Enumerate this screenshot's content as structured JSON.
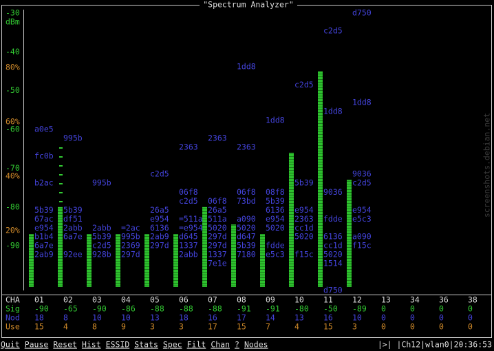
{
  "spectrum": {
    "title": "\"Spectrum Analyzer\"",
    "ylim": [
      -101.5,
      -30
    ],
    "yticks": [
      -30,
      -40,
      -50,
      -60,
      -70,
      -80,
      -90
    ],
    "yunit": "dBm",
    "y2lim": [
      -2,
      100
    ],
    "y2ticks": [
      {
        "value": 80,
        "label": "80%"
      },
      {
        "value": 60,
        "label": "60%"
      },
      {
        "value": 40,
        "label": "40%"
      },
      {
        "value": 20,
        "label": "20%"
      }
    ],
    "row_labels": [
      "CHA",
      "Sig",
      "Nod",
      "Use"
    ],
    "channels": [
      {
        "name": "01",
        "bar": -87,
        "sig": -90,
        "nod": 18,
        "use": 15,
        "networks": [
          {
            "id": "a0e5",
            "dbm": -60
          },
          {
            "id": "fc0b",
            "dbm": -66.9
          },
          {
            "id": "b2ac",
            "dbm": -73.8
          },
          {
            "id": "5b39",
            "dbm": -80.8
          },
          {
            "id": "67ac",
            "dbm": -83.1
          },
          {
            "id": "e954",
            "dbm": -85.4
          },
          {
            "id": "b1b4",
            "dbm": -87.7
          },
          {
            "id": "6a7e",
            "dbm": -90
          },
          {
            "id": "2ab9",
            "dbm": -92.3
          }
        ]
      },
      {
        "name": "02",
        "bar": -80,
        "sig": -65,
        "nod": 8,
        "use": 4,
        "networks": [
          {
            "id": "995b",
            "dbm": -62.3
          },
          {
            "id": "5b39",
            "dbm": -80.8
          },
          {
            "id": "df51",
            "dbm": -83.1
          },
          {
            "id": "2abb",
            "dbm": -85.4
          },
          {
            "id": "6a7e",
            "dbm": -87.7
          },
          {
            "id": "92ee",
            "dbm": -92.3
          }
        ]
      },
      {
        "name": "03",
        "bar": -87,
        "sig": -90,
        "nod": 10,
        "use": 8,
        "networks": [
          {
            "id": "995b",
            "dbm": -73.8
          },
          {
            "id": "2abb",
            "dbm": -85.4
          },
          {
            "id": "5b39",
            "dbm": -87.7
          },
          {
            "id": "c2d5",
            "dbm": -90
          },
          {
            "id": "928b",
            "dbm": -92.3
          }
        ]
      },
      {
        "name": "04",
        "bar": -87,
        "sig": -86,
        "nod": 10,
        "use": 9,
        "networks": [
          {
            "id": "=2ac",
            "dbm": -85.4
          },
          {
            "id": "995b",
            "dbm": -87.7
          },
          {
            "id": "2369",
            "dbm": -90
          },
          {
            "id": "297d",
            "dbm": -92.3
          }
        ]
      },
      {
        "name": "05",
        "bar": -87,
        "sig": -88,
        "nod": 13,
        "use": 3,
        "networks": [
          {
            "id": "c2d5",
            "dbm": -71.5
          },
          {
            "id": "26a5",
            "dbm": -80.8
          },
          {
            "id": "e954",
            "dbm": -83.1
          },
          {
            "id": "6136",
            "dbm": -85.4
          },
          {
            "id": "2ab9",
            "dbm": -87.7
          },
          {
            "id": "297d",
            "dbm": -90
          }
        ]
      },
      {
        "name": "06",
        "bar": -87,
        "sig": -88,
        "nod": 18,
        "use": 3,
        "networks": [
          {
            "id": "2363",
            "dbm": -64.6
          },
          {
            "id": "06f8",
            "dbm": -76.2
          },
          {
            "id": "c2d5",
            "dbm": -78.5
          },
          {
            "id": "=511a",
            "dbm": -83.1
          },
          {
            "id": "=e954",
            "dbm": -85.4
          },
          {
            "id": "d645",
            "dbm": -87.7
          },
          {
            "id": "1337",
            "dbm": -90
          },
          {
            "id": "2abb",
            "dbm": -92.3
          }
        ]
      },
      {
        "name": "07",
        "bar": -80,
        "sig": -88,
        "nod": 16,
        "use": 17,
        "networks": [
          {
            "id": "2363",
            "dbm": -62.3
          },
          {
            "id": "06f8",
            "dbm": -78.5
          },
          {
            "id": "26a5",
            "dbm": -80.8
          },
          {
            "id": "511a",
            "dbm": -83.1
          },
          {
            "id": "5020",
            "dbm": -85.4
          },
          {
            "id": "297d",
            "dbm": -87.7
          },
          {
            "id": "297d",
            "dbm": -90
          },
          {
            "id": "1337",
            "dbm": -92.3
          },
          {
            "id": "7e1e",
            "dbm": -94.6
          }
        ]
      },
      {
        "name": "08",
        "bar": -84.5,
        "sig": -91,
        "nod": 17,
        "use": 15,
        "networks": [
          {
            "id": "1dd8",
            "dbm": -43.8
          },
          {
            "id": "2363",
            "dbm": -64.6
          },
          {
            "id": "06f8",
            "dbm": -76.2
          },
          {
            "id": "73bd",
            "dbm": -78.5
          },
          {
            "id": "a090",
            "dbm": -83.1
          },
          {
            "id": "5020",
            "dbm": -85.4
          },
          {
            "id": "d647",
            "dbm": -87.7
          },
          {
            "id": "5b39",
            "dbm": -90
          },
          {
            "id": "7180",
            "dbm": -92.3
          }
        ]
      },
      {
        "name": "09",
        "bar": -87,
        "sig": -91,
        "nod": 14,
        "use": 7,
        "networks": [
          {
            "id": "1dd8",
            "dbm": -57.7
          },
          {
            "id": "08f8",
            "dbm": -76.2
          },
          {
            "id": "5b39",
            "dbm": -78.5
          },
          {
            "id": "6136",
            "dbm": -80.8
          },
          {
            "id": "e954",
            "dbm": -83.1
          },
          {
            "id": "5020",
            "dbm": -85.4
          },
          {
            "id": "fdde",
            "dbm": -90
          },
          {
            "id": "e5c3",
            "dbm": -92.3
          }
        ]
      },
      {
        "name": "10",
        "bar": -66,
        "sig": -80,
        "nod": 13,
        "use": 4,
        "networks": [
          {
            "id": "c2d5",
            "dbm": -48.5
          },
          {
            "id": "5b39",
            "dbm": -73.8
          },
          {
            "id": "e954",
            "dbm": -80.8
          },
          {
            "id": "2363",
            "dbm": -83.1
          },
          {
            "id": "cc1d",
            "dbm": -85.4
          },
          {
            "id": "5020",
            "dbm": -87.7
          },
          {
            "id": "f15c",
            "dbm": -92.3
          }
        ]
      },
      {
        "name": "11",
        "bar": -45,
        "sig": -50,
        "nod": 16,
        "use": 15,
        "networks": [
          {
            "id": "c2d5",
            "dbm": -34.6
          },
          {
            "id": "1dd8",
            "dbm": -55.4
          },
          {
            "id": "9036",
            "dbm": -76.2
          },
          {
            "id": "fdde",
            "dbm": -83.1
          },
          {
            "id": "6136",
            "dbm": -87.7
          },
          {
            "id": "cc1d",
            "dbm": -90
          },
          {
            "id": "5020",
            "dbm": -92.3
          },
          {
            "id": "1514",
            "dbm": -94.6
          },
          {
            "id": "d750",
            "dbm": -101.5
          }
        ]
      },
      {
        "name": "12",
        "bar": -73,
        "sig": -89,
        "nod": 10,
        "use": 3,
        "networks": [
          {
            "id": "d750",
            "dbm": -30
          },
          {
            "id": "1dd8",
            "dbm": -53.1
          },
          {
            "id": "9036",
            "dbm": -71.5
          },
          {
            "id": "c2d5",
            "dbm": -73.8
          },
          {
            "id": "e954",
            "dbm": -80.8
          },
          {
            "id": "e5c3",
            "dbm": -83.1
          },
          {
            "id": "a090",
            "dbm": -87.7
          },
          {
            "id": "f15c",
            "dbm": -90
          }
        ]
      },
      {
        "name": "13",
        "sig": 0,
        "nod": 0,
        "use": 0
      },
      {
        "name": "34",
        "sig": 0,
        "nod": 0,
        "use": 0
      },
      {
        "name": "36",
        "sig": 0,
        "nod": 0,
        "use": 0
      },
      {
        "name": "38",
        "sig": 0,
        "nod": 0,
        "use": 0
      }
    ],
    "menu": [
      "Quit",
      "Pause",
      "Reset",
      "Hist",
      "ESSID",
      "Stats",
      "Spec",
      "Filt",
      "Chan",
      "?",
      "Nodes"
    ],
    "status": "|>| |Ch12|wlan0|20:36:53",
    "watermark": "screenshots.debian.net"
  }
}
